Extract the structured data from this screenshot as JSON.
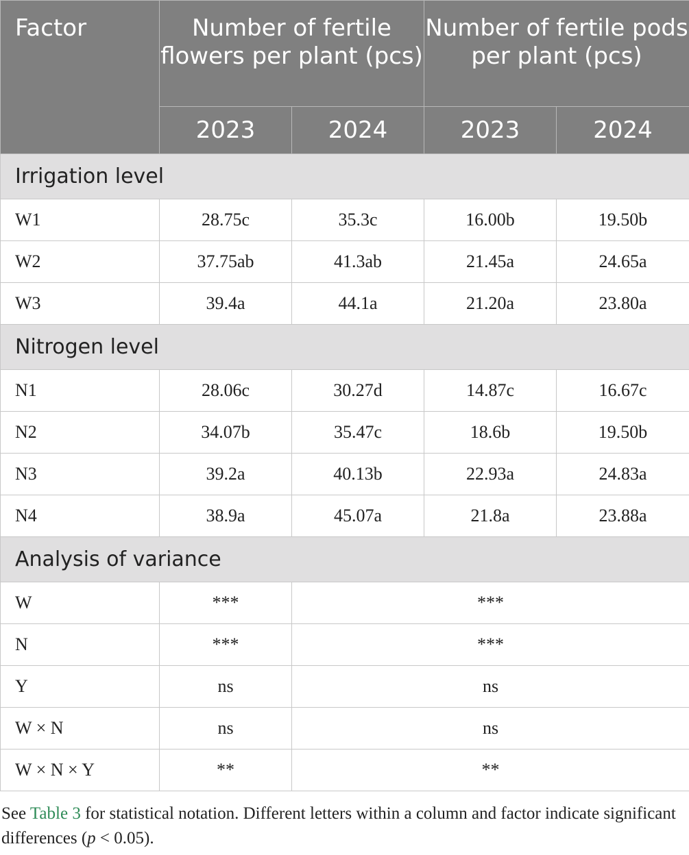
{
  "header": {
    "factor": "Factor",
    "group1": "Number of fertile flowers per plant (pcs)",
    "group2": "Number of fertile pods per plant (pcs)",
    "years": [
      "2023",
      "2024",
      "2023",
      "2024"
    ]
  },
  "sections": {
    "irrigation": {
      "title": "Irrigation level",
      "rows": [
        {
          "label": "W1",
          "values": [
            "28.75c",
            "35.3c",
            "16.00b",
            "19.50b"
          ]
        },
        {
          "label": "W2",
          "values": [
            "37.75ab",
            "41.3ab",
            "21.45a",
            "24.65a"
          ]
        },
        {
          "label": "W3",
          "values": [
            "39.4a",
            "44.1a",
            "21.20a",
            "23.80a"
          ]
        }
      ]
    },
    "nitrogen": {
      "title": "Nitrogen level",
      "rows": [
        {
          "label": "N1",
          "values": [
            "28.06c",
            "30.27d",
            "14.87c",
            "16.67c"
          ]
        },
        {
          "label": "N2",
          "values": [
            "34.07b",
            "35.47c",
            "18.6b",
            "19.50b"
          ]
        },
        {
          "label": "N3",
          "values": [
            "39.2a",
            "40.13b",
            "22.93a",
            "24.83a"
          ]
        },
        {
          "label": "N4",
          "values": [
            "38.9a",
            "45.07a",
            "21.8a",
            "23.88a"
          ]
        }
      ]
    },
    "anova": {
      "title": "Analysis of variance",
      "rows": [
        {
          "label": "W",
          "flowers": "***",
          "pods": "***"
        },
        {
          "label": "N",
          "flowers": "***",
          "pods": "***"
        },
        {
          "label": "Y",
          "flowers": "ns",
          "pods": "ns"
        },
        {
          "label": "W × N",
          "flowers": "ns",
          "pods": "ns"
        },
        {
          "label": "W × N × Y",
          "flowers": "**",
          "pods": "**"
        }
      ]
    }
  },
  "footnote": {
    "prefix": "See ",
    "link": "Table 3",
    "middle": " for statistical notation. Different letters within a column and factor indicate significant differences (",
    "p": "p",
    "suffix": " < 0.05)."
  },
  "colors": {
    "header_bg": "#808080",
    "section_bg": "#e0dfe0",
    "link": "#2e8b57"
  }
}
